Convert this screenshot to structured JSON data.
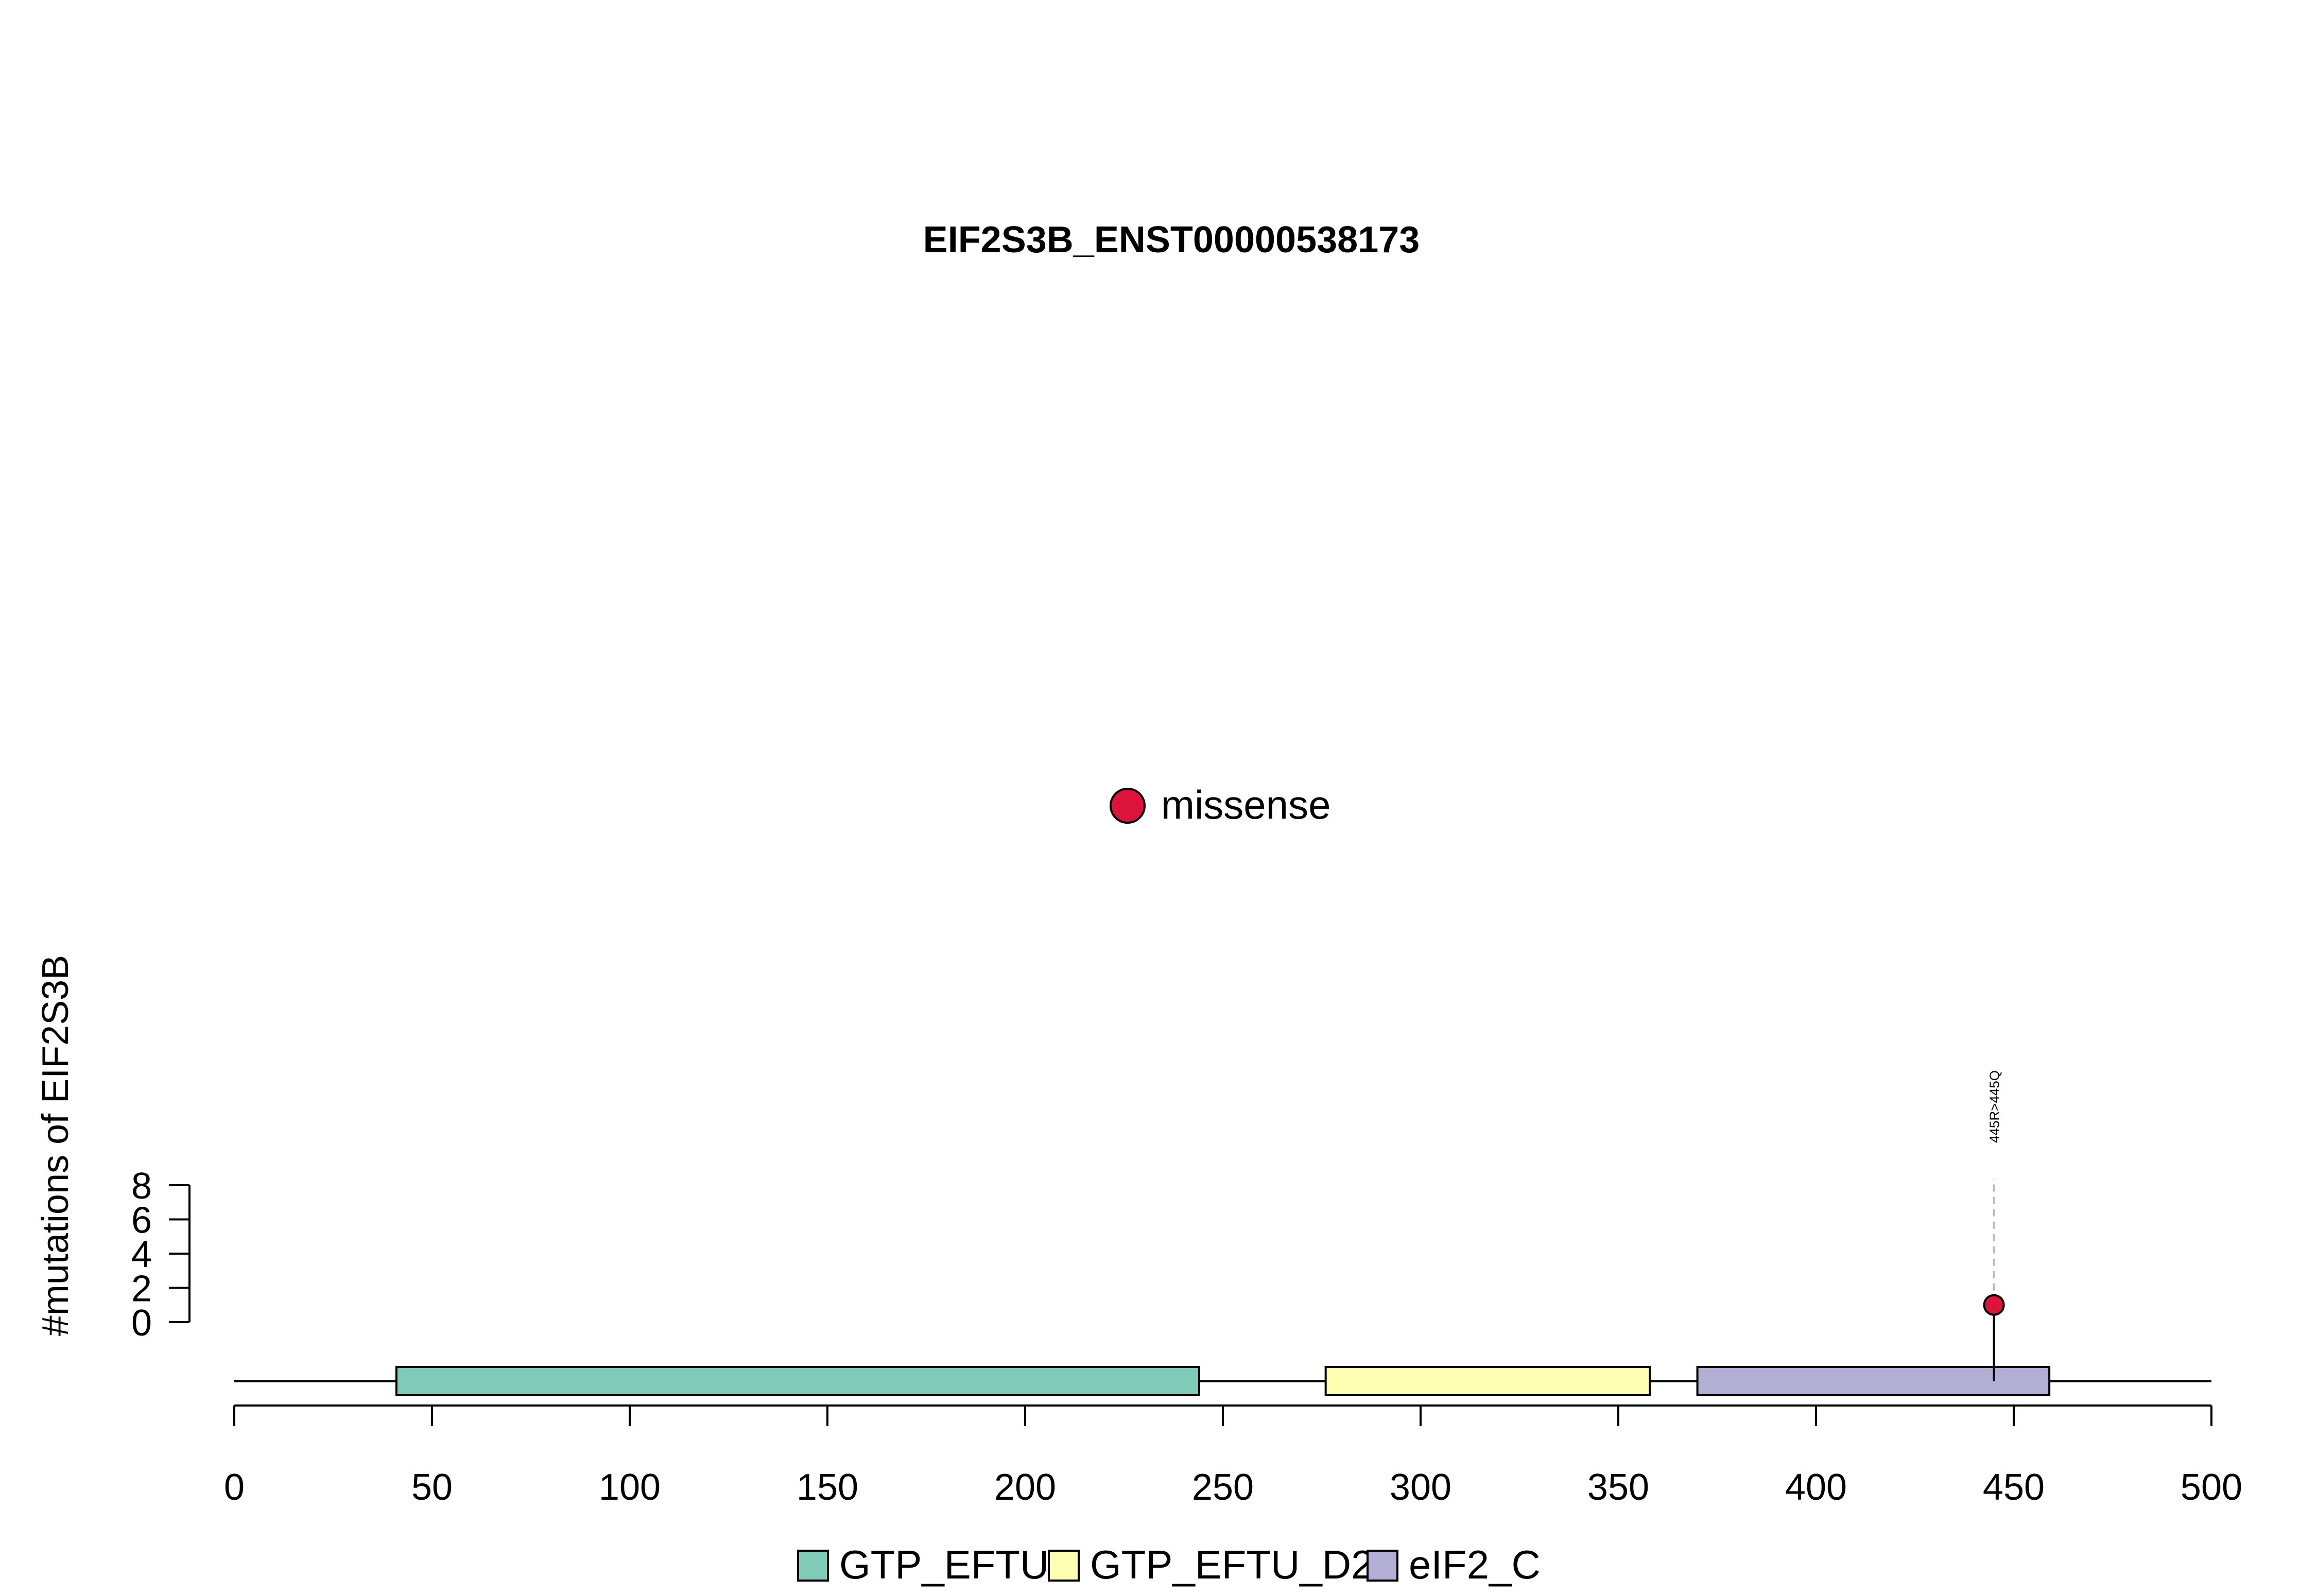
{
  "chart_data": {
    "type": "lollipop",
    "title": "EIF2S3B_ENST00000538173",
    "xlabel": "",
    "ylabel": "#mutations of EIF2S3B",
    "xlim": [
      0,
      500
    ],
    "x_ticks": [
      0,
      50,
      100,
      150,
      200,
      250,
      300,
      350,
      400,
      450,
      500
    ],
    "ylim": [
      0,
      8
    ],
    "y_ticks": [
      0,
      2,
      4,
      6,
      8
    ],
    "protein_length": 500,
    "domains": [
      {
        "name": "GTP_EFTU",
        "start": 41,
        "end": 244,
        "color": "#7fcbb8"
      },
      {
        "name": "GTP_EFTU_D2",
        "start": 276,
        "end": 358,
        "color": "#ffffb3"
      },
      {
        "name": "eIF2_C",
        "start": 370,
        "end": 459,
        "color": "#b3aed3"
      }
    ],
    "mutations": [
      {
        "position": 445,
        "count": 1,
        "type": "missense",
        "label": "445R>445Q",
        "color": "#dc143c"
      }
    ],
    "mutation_legend": [
      {
        "type": "missense",
        "label": "missense",
        "color": "#dc143c"
      }
    ],
    "domain_legend_position": "bottom",
    "mutation_legend_position": "center"
  }
}
